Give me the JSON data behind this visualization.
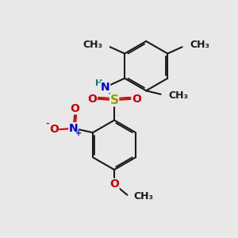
{
  "bg_color": "#e8e8e8",
  "bond_color": "#1a1a1a",
  "bond_width": 1.5,
  "dbo": 0.07,
  "figsize": [
    3.0,
    3.0
  ],
  "dpi": 100,
  "S_color": "#999900",
  "N_color": "#0000cc",
  "O_color": "#cc0000",
  "H_color": "#008080",
  "C_color": "#1a1a1a",
  "font_size": 10,
  "small_font_size": 8,
  "xlim": [
    0,
    10
  ],
  "ylim": [
    0,
    10
  ]
}
